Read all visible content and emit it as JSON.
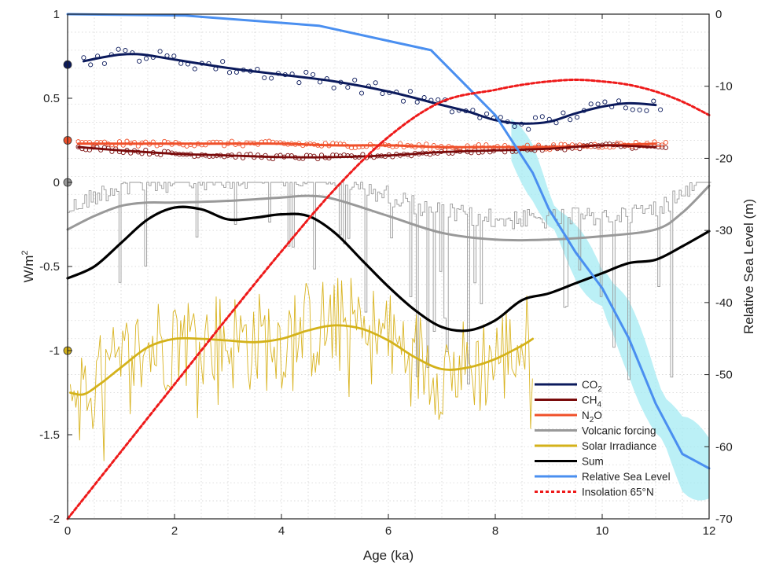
{
  "chart_data": {
    "type": "line",
    "title": "",
    "xlabel": "Age (ka)",
    "ylabel_left": "W/m²",
    "ylabel_left_base": "W/m",
    "ylabel_left_sup": "2",
    "ylabel_right": "Relative Sea Level (m)",
    "xlim": [
      0,
      12
    ],
    "ylim_left": [
      -2,
      1
    ],
    "ylim_right": [
      -70,
      0
    ],
    "x_ticks": [
      "0",
      "2",
      "4",
      "6",
      "8",
      "10",
      "12"
    ],
    "y_ticks_left": [
      "1",
      "0.5",
      "0",
      "-0.5",
      "-1",
      "-1.5",
      "-2"
    ],
    "y_ticks_right": [
      "0",
      "-10",
      "-20",
      "-30",
      "-40",
      "-50",
      "-60",
      "-70"
    ],
    "grid": true,
    "legend_position": "bottom-right",
    "colors": {
      "co2": "#0b1a5c",
      "ch4": "#7a0b0b",
      "n2o": "#f0502a",
      "volcanic": "#999999",
      "volcanic_raw": "#9a9a9a",
      "solar": "#d4b21a",
      "solar_raw": "#d9b422",
      "sum": "#000000",
      "sea_level": "#4a8ff0",
      "sea_band": "#9eeaf2",
      "insolation": "#ee1a1a"
    },
    "series": [
      {
        "name": "CO₂",
        "label_base": "CO",
        "label_sub": "2",
        "key": "co2",
        "axis": "left",
        "x": [
          0.3,
          0.6,
          1,
          1.4,
          2,
          3,
          4,
          5,
          6,
          7,
          7.5,
          8,
          8.5,
          9,
          9.5,
          10,
          10.5,
          11
        ],
        "values": [
          0.72,
          0.74,
          0.76,
          0.76,
          0.73,
          0.68,
          0.64,
          0.6,
          0.54,
          0.46,
          0.42,
          0.37,
          0.35,
          0.36,
          0.41,
          0.45,
          0.47,
          0.46
        ]
      },
      {
        "name": "CH₄",
        "label_base": "CH",
        "label_sub": "4",
        "key": "ch4",
        "axis": "left",
        "x": [
          0.2,
          1,
          2,
          3,
          4,
          5,
          6,
          7,
          8,
          9,
          10,
          11
        ],
        "values": [
          0.21,
          0.19,
          0.17,
          0.16,
          0.15,
          0.15,
          0.16,
          0.18,
          0.19,
          0.2,
          0.22,
          0.21
        ]
      },
      {
        "name": "N₂O",
        "label_base": "N",
        "label_sub": "2",
        "label_tail": "O",
        "key": "n2o",
        "axis": "left",
        "x": [
          0.2,
          1,
          2,
          3,
          4,
          5,
          6,
          7,
          8,
          9,
          10,
          11
        ],
        "values": [
          0.23,
          0.23,
          0.23,
          0.23,
          0.23,
          0.22,
          0.22,
          0.21,
          0.21,
          0.21,
          0.22,
          0.23
        ]
      },
      {
        "name": "Volcanic forcing",
        "key": "volcanic",
        "axis": "left",
        "x": [
          0,
          0.5,
          1,
          1.5,
          2,
          3,
          4,
          4.5,
          5,
          6,
          7,
          8,
          9,
          10,
          11,
          11.5,
          12
        ],
        "values": [
          -0.28,
          -0.2,
          -0.14,
          -0.12,
          -0.12,
          -0.11,
          -0.09,
          -0.08,
          -0.1,
          -0.2,
          -0.3,
          -0.34,
          -0.34,
          -0.32,
          -0.28,
          -0.18,
          -0.02
        ]
      },
      {
        "name": "Solar Irradiance",
        "key": "solar",
        "axis": "left",
        "x": [
          0.05,
          0.3,
          0.6,
          1,
          1.5,
          2,
          2.5,
          3,
          3.5,
          4,
          4.5,
          5,
          5.5,
          6,
          6.5,
          7,
          7.5,
          8,
          8.5,
          8.7
        ],
        "values": [
          -1.25,
          -1.26,
          -1.2,
          -1.1,
          -0.98,
          -0.93,
          -0.93,
          -0.94,
          -0.95,
          -0.93,
          -0.88,
          -0.85,
          -0.87,
          -0.94,
          -1.04,
          -1.11,
          -1.1,
          -1.05,
          -0.97,
          -0.93
        ]
      },
      {
        "name": "Sum",
        "key": "sum",
        "axis": "left",
        "x": [
          0,
          0.5,
          1,
          1.5,
          2,
          2.5,
          3,
          3.5,
          4,
          4.5,
          5,
          5.5,
          6,
          6.5,
          7,
          7.5,
          8,
          8.5,
          9,
          9.5,
          10,
          10.5,
          11,
          11.5,
          12
        ],
        "values": [
          -0.57,
          -0.5,
          -0.36,
          -0.22,
          -0.15,
          -0.16,
          -0.22,
          -0.21,
          -0.19,
          -0.2,
          -0.3,
          -0.46,
          -0.62,
          -0.76,
          -0.86,
          -0.88,
          -0.82,
          -0.7,
          -0.66,
          -0.6,
          -0.54,
          -0.48,
          -0.46,
          -0.38,
          -0.29
        ]
      },
      {
        "name": "Relative Sea Level",
        "key": "sea_level",
        "axis": "right",
        "x": [
          0,
          2.2,
          4.7,
          6.8,
          8,
          8.7,
          9,
          9.5,
          10,
          10.5,
          11,
          11.5,
          12
        ],
        "values": [
          0,
          -0.2,
          -1.6,
          -5,
          -14,
          -22,
          -27,
          -33,
          -38,
          -45,
          -54,
          -61,
          -63
        ]
      },
      {
        "name": "Insolation 65°N",
        "key": "insolation",
        "axis": "left",
        "x": [
          0,
          1,
          2,
          3,
          4,
          5,
          6,
          7,
          8,
          8.5,
          9,
          9.5,
          10,
          10.5,
          11,
          11.5,
          12
        ],
        "values": [
          -2.0,
          -1.6,
          -1.2,
          -0.8,
          -0.41,
          -0.04,
          0.27,
          0.48,
          0.55,
          0.58,
          0.6,
          0.61,
          0.6,
          0.58,
          0.54,
          0.48,
          0.4
        ]
      }
    ],
    "markers_left_axis": [
      {
        "key": "co2",
        "value": 0.7
      },
      {
        "key": "n2o",
        "value": 0.25
      },
      {
        "key": "volcanic",
        "value": 0.0
      },
      {
        "key": "solar",
        "value": -1.0
      }
    ]
  }
}
